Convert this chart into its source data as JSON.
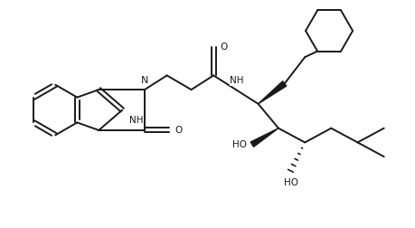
{
  "bg_color": "#ffffff",
  "line_color": "#1a1a1a",
  "line_width": 1.4,
  "font_size": 7.5,
  "figsize": [
    4.59,
    2.52
  ],
  "dpi": 100,
  "xlim": [
    0,
    10.2
  ],
  "ylim": [
    0,
    5.5
  ]
}
